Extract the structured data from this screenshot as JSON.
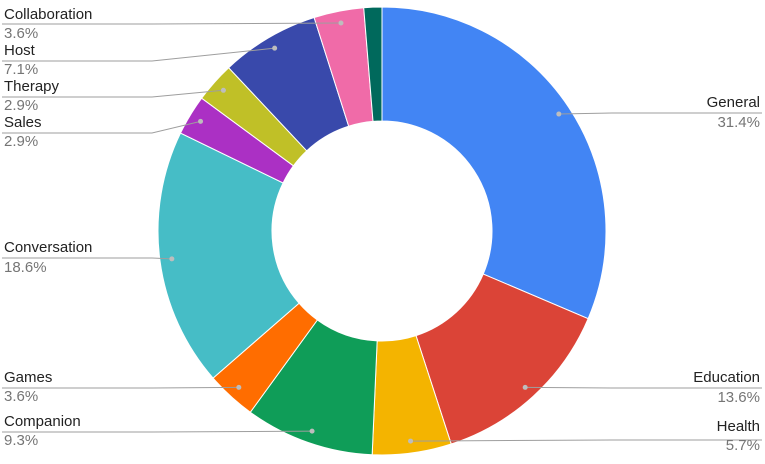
{
  "chart_data": {
    "type": "donut",
    "categories": [
      "General",
      "Education",
      "Health",
      "Companion",
      "Games",
      "Conversation",
      "Sales",
      "Therapy",
      "Host",
      "Collaboration",
      null
    ],
    "values": [
      31.4,
      13.6,
      5.7,
      9.3,
      3.6,
      18.6,
      2.9,
      2.9,
      7.1,
      3.6,
      1.3
    ],
    "value_labels": [
      "31.4%",
      "13.6%",
      "5.7%",
      "9.3%",
      "3.6%",
      "18.6%",
      "2.9%",
      "2.9%",
      "7.1%",
      "3.6%",
      null
    ],
    "colors": [
      "#4285f4",
      "#db4437",
      "#f4b400",
      "#0f9d58",
      "#ff6d00",
      "#46bdc6",
      "#ab30c4",
      "#c0c027",
      "#3949ab",
      "#f06ba8",
      "#00695c"
    ]
  }
}
